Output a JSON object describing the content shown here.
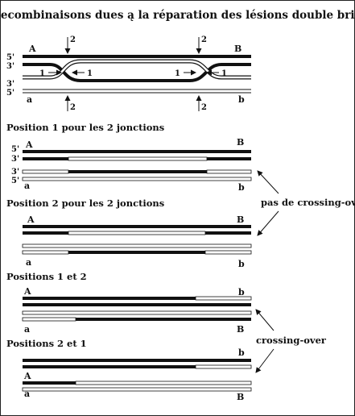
{
  "title": "Recombinaisons dues ą la réparation des lésions double brin",
  "top": {
    "label_5p_top": "5'",
    "label_3p_top": "3'",
    "label_3p_bot": "3'",
    "label_5p_bot": "5'",
    "label_A": "A",
    "label_B": "B",
    "label_a": "a",
    "label_b": "b",
    "arrow_1": "1",
    "arrow_2": "2"
  },
  "panels": [
    {
      "caption": "Position 1 pour les 2 jonctions",
      "left_top": "A",
      "right_top": "B",
      "left_bot": "a",
      "right_bot": "b",
      "strand_labels": [
        "5'",
        "3'",
        "3'",
        "5'"
      ]
    },
    {
      "caption": "Position 2 pour les 2 jonctions",
      "left_top": "A",
      "right_top": "B",
      "left_bot": "a",
      "right_bot": "b"
    },
    {
      "caption": "Positions 1 et 2",
      "left_top": "A",
      "right_top": "b",
      "left_bot": "a",
      "right_bot": "B"
    },
    {
      "caption": "Positions 2 et 1",
      "left_top": "A",
      "right_top": "b",
      "left_bot": "a",
      "right_bot": "B"
    }
  ],
  "annotations": {
    "no_crossover": "pas de crossing-over",
    "crossover": "crossing-over"
  }
}
